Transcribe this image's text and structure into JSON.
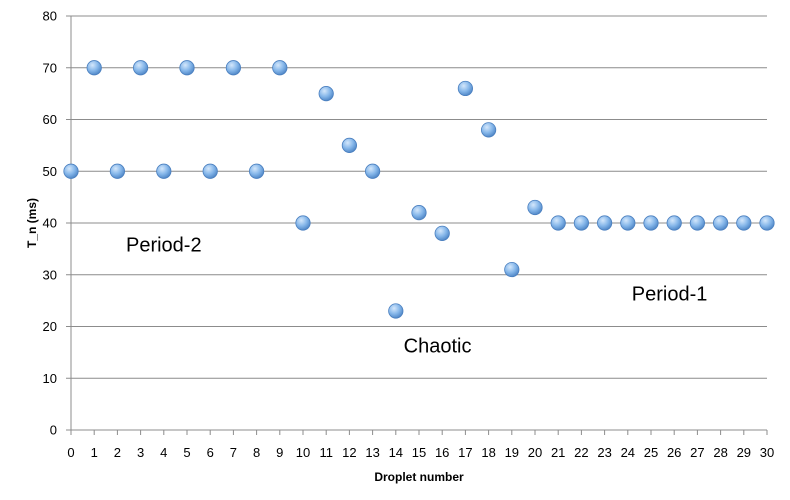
{
  "chart_data": {
    "type": "scatter",
    "xlabel": "Droplet number",
    "ylabel": "T_n (ms)",
    "xlim": [
      0,
      30
    ],
    "ylim": [
      0,
      80
    ],
    "xticks": [
      0,
      1,
      2,
      3,
      4,
      5,
      6,
      7,
      8,
      9,
      10,
      11,
      12,
      13,
      14,
      15,
      16,
      17,
      18,
      19,
      20,
      21,
      22,
      23,
      24,
      25,
      26,
      27,
      28,
      29,
      30
    ],
    "yticks": [
      0,
      10,
      20,
      30,
      40,
      50,
      60,
      70,
      80
    ],
    "grid": "horizontal",
    "legend": "none",
    "marker_color": "#7FB2E8",
    "series": [
      {
        "x": [
          0,
          1,
          2,
          3,
          4,
          5,
          6,
          7,
          8,
          9,
          10,
          11,
          12,
          13,
          14,
          15,
          16,
          17,
          18,
          19,
          20,
          21,
          22,
          23,
          24,
          25,
          26,
          27,
          28,
          29,
          30
        ],
        "y": [
          50,
          70,
          50,
          70,
          50,
          70,
          50,
          70,
          50,
          70,
          40,
          65,
          55,
          50,
          23,
          42,
          38,
          66,
          58,
          31,
          43,
          40,
          40,
          40,
          40,
          40,
          40,
          40,
          40,
          40,
          40
        ]
      }
    ],
    "annotations": [
      {
        "text": "Period-2",
        "x": 4,
        "y": 34.5
      },
      {
        "text": "Chaotic",
        "x": 15.8,
        "y": 15
      },
      {
        "text": "Period-1",
        "x": 25.8,
        "y": 25
      }
    ]
  }
}
